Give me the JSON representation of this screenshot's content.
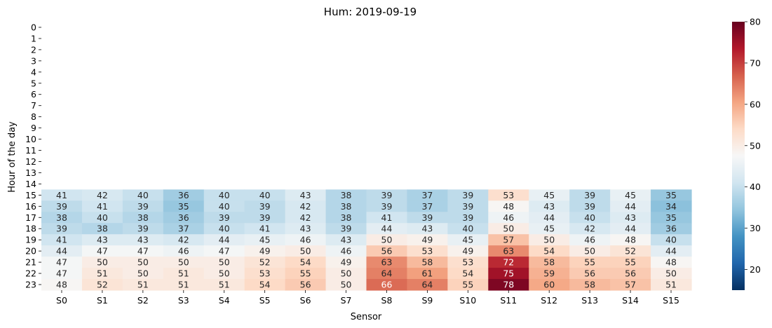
{
  "chart_data": {
    "type": "heatmap",
    "title": "Hum: 2019-09-19",
    "xlabel": "Sensor",
    "ylabel": "Hour of the day",
    "x": [
      "S0",
      "S1",
      "S2",
      "S3",
      "S4",
      "S5",
      "S6",
      "S7",
      "S8",
      "S9",
      "S10",
      "S11",
      "S12",
      "S13",
      "S14",
      "S15"
    ],
    "y": [
      "0",
      "1",
      "2",
      "3",
      "4",
      "5",
      "6",
      "7",
      "8",
      "9",
      "10",
      "11",
      "12",
      "13",
      "14",
      "15",
      "16",
      "17",
      "18",
      "19",
      "20",
      "21",
      "22",
      "23"
    ],
    "values": [
      [
        null,
        null,
        null,
        null,
        null,
        null,
        null,
        null,
        null,
        null,
        null,
        null,
        null,
        null,
        null,
        null
      ],
      [
        null,
        null,
        null,
        null,
        null,
        null,
        null,
        null,
        null,
        null,
        null,
        null,
        null,
        null,
        null,
        null
      ],
      [
        null,
        null,
        null,
        null,
        null,
        null,
        null,
        null,
        null,
        null,
        null,
        null,
        null,
        null,
        null,
        null
      ],
      [
        null,
        null,
        null,
        null,
        null,
        null,
        null,
        null,
        null,
        null,
        null,
        null,
        null,
        null,
        null,
        null
      ],
      [
        null,
        null,
        null,
        null,
        null,
        null,
        null,
        null,
        null,
        null,
        null,
        null,
        null,
        null,
        null,
        null
      ],
      [
        null,
        null,
        null,
        null,
        null,
        null,
        null,
        null,
        null,
        null,
        null,
        null,
        null,
        null,
        null,
        null
      ],
      [
        null,
        null,
        null,
        null,
        null,
        null,
        null,
        null,
        null,
        null,
        null,
        null,
        null,
        null,
        null,
        null
      ],
      [
        null,
        null,
        null,
        null,
        null,
        null,
        null,
        null,
        null,
        null,
        null,
        null,
        null,
        null,
        null,
        null
      ],
      [
        null,
        null,
        null,
        null,
        null,
        null,
        null,
        null,
        null,
        null,
        null,
        null,
        null,
        null,
        null,
        null
      ],
      [
        null,
        null,
        null,
        null,
        null,
        null,
        null,
        null,
        null,
        null,
        null,
        null,
        null,
        null,
        null,
        null
      ],
      [
        null,
        null,
        null,
        null,
        null,
        null,
        null,
        null,
        null,
        null,
        null,
        null,
        null,
        null,
        null,
        null
      ],
      [
        null,
        null,
        null,
        null,
        null,
        null,
        null,
        null,
        null,
        null,
        null,
        null,
        null,
        null,
        null,
        null
      ],
      [
        null,
        null,
        null,
        null,
        null,
        null,
        null,
        null,
        null,
        null,
        null,
        null,
        null,
        null,
        null,
        null
      ],
      [
        null,
        null,
        null,
        null,
        null,
        null,
        null,
        null,
        null,
        null,
        null,
        null,
        null,
        null,
        null,
        null
      ],
      [
        null,
        null,
        null,
        null,
        null,
        null,
        null,
        null,
        null,
        null,
        null,
        null,
        null,
        null,
        null,
        null
      ],
      [
        41,
        42,
        40,
        36,
        40,
        40,
        43,
        38,
        39,
        37,
        39,
        53,
        45,
        39,
        45,
        35
      ],
      [
        39,
        41,
        39,
        35,
        40,
        39,
        42,
        38,
        39,
        37,
        39,
        48,
        43,
        39,
        44,
        34
      ],
      [
        38,
        40,
        38,
        36,
        39,
        39,
        42,
        38,
        41,
        39,
        39,
        46,
        44,
        40,
        43,
        35
      ],
      [
        39,
        38,
        39,
        37,
        40,
        41,
        43,
        39,
        44,
        43,
        40,
        50,
        45,
        42,
        44,
        36
      ],
      [
        41,
        43,
        43,
        42,
        44,
        45,
        46,
        43,
        50,
        49,
        45,
        57,
        50,
        46,
        48,
        40
      ],
      [
        44,
        47,
        47,
        46,
        47,
        49,
        50,
        46,
        56,
        53,
        49,
        63,
        54,
        50,
        52,
        44
      ],
      [
        47,
        50,
        50,
        50,
        50,
        52,
        54,
        49,
        63,
        58,
        53,
        72,
        58,
        55,
        55,
        48
      ],
      [
        47,
        51,
        50,
        51,
        50,
        53,
        55,
        50,
        64,
        61,
        54,
        75,
        59,
        56,
        56,
        50
      ],
      [
        48,
        52,
        51,
        51,
        51,
        54,
        56,
        50,
        66,
        64,
        55,
        78,
        60,
        58,
        57,
        51
      ]
    ],
    "colorbar": {
      "min": 15,
      "max": 80,
      "ticks": [
        20,
        30,
        40,
        50,
        60,
        70,
        80
      ],
      "colormap": "RdBu_r"
    },
    "grid": false,
    "legend": "colorbar-right"
  }
}
